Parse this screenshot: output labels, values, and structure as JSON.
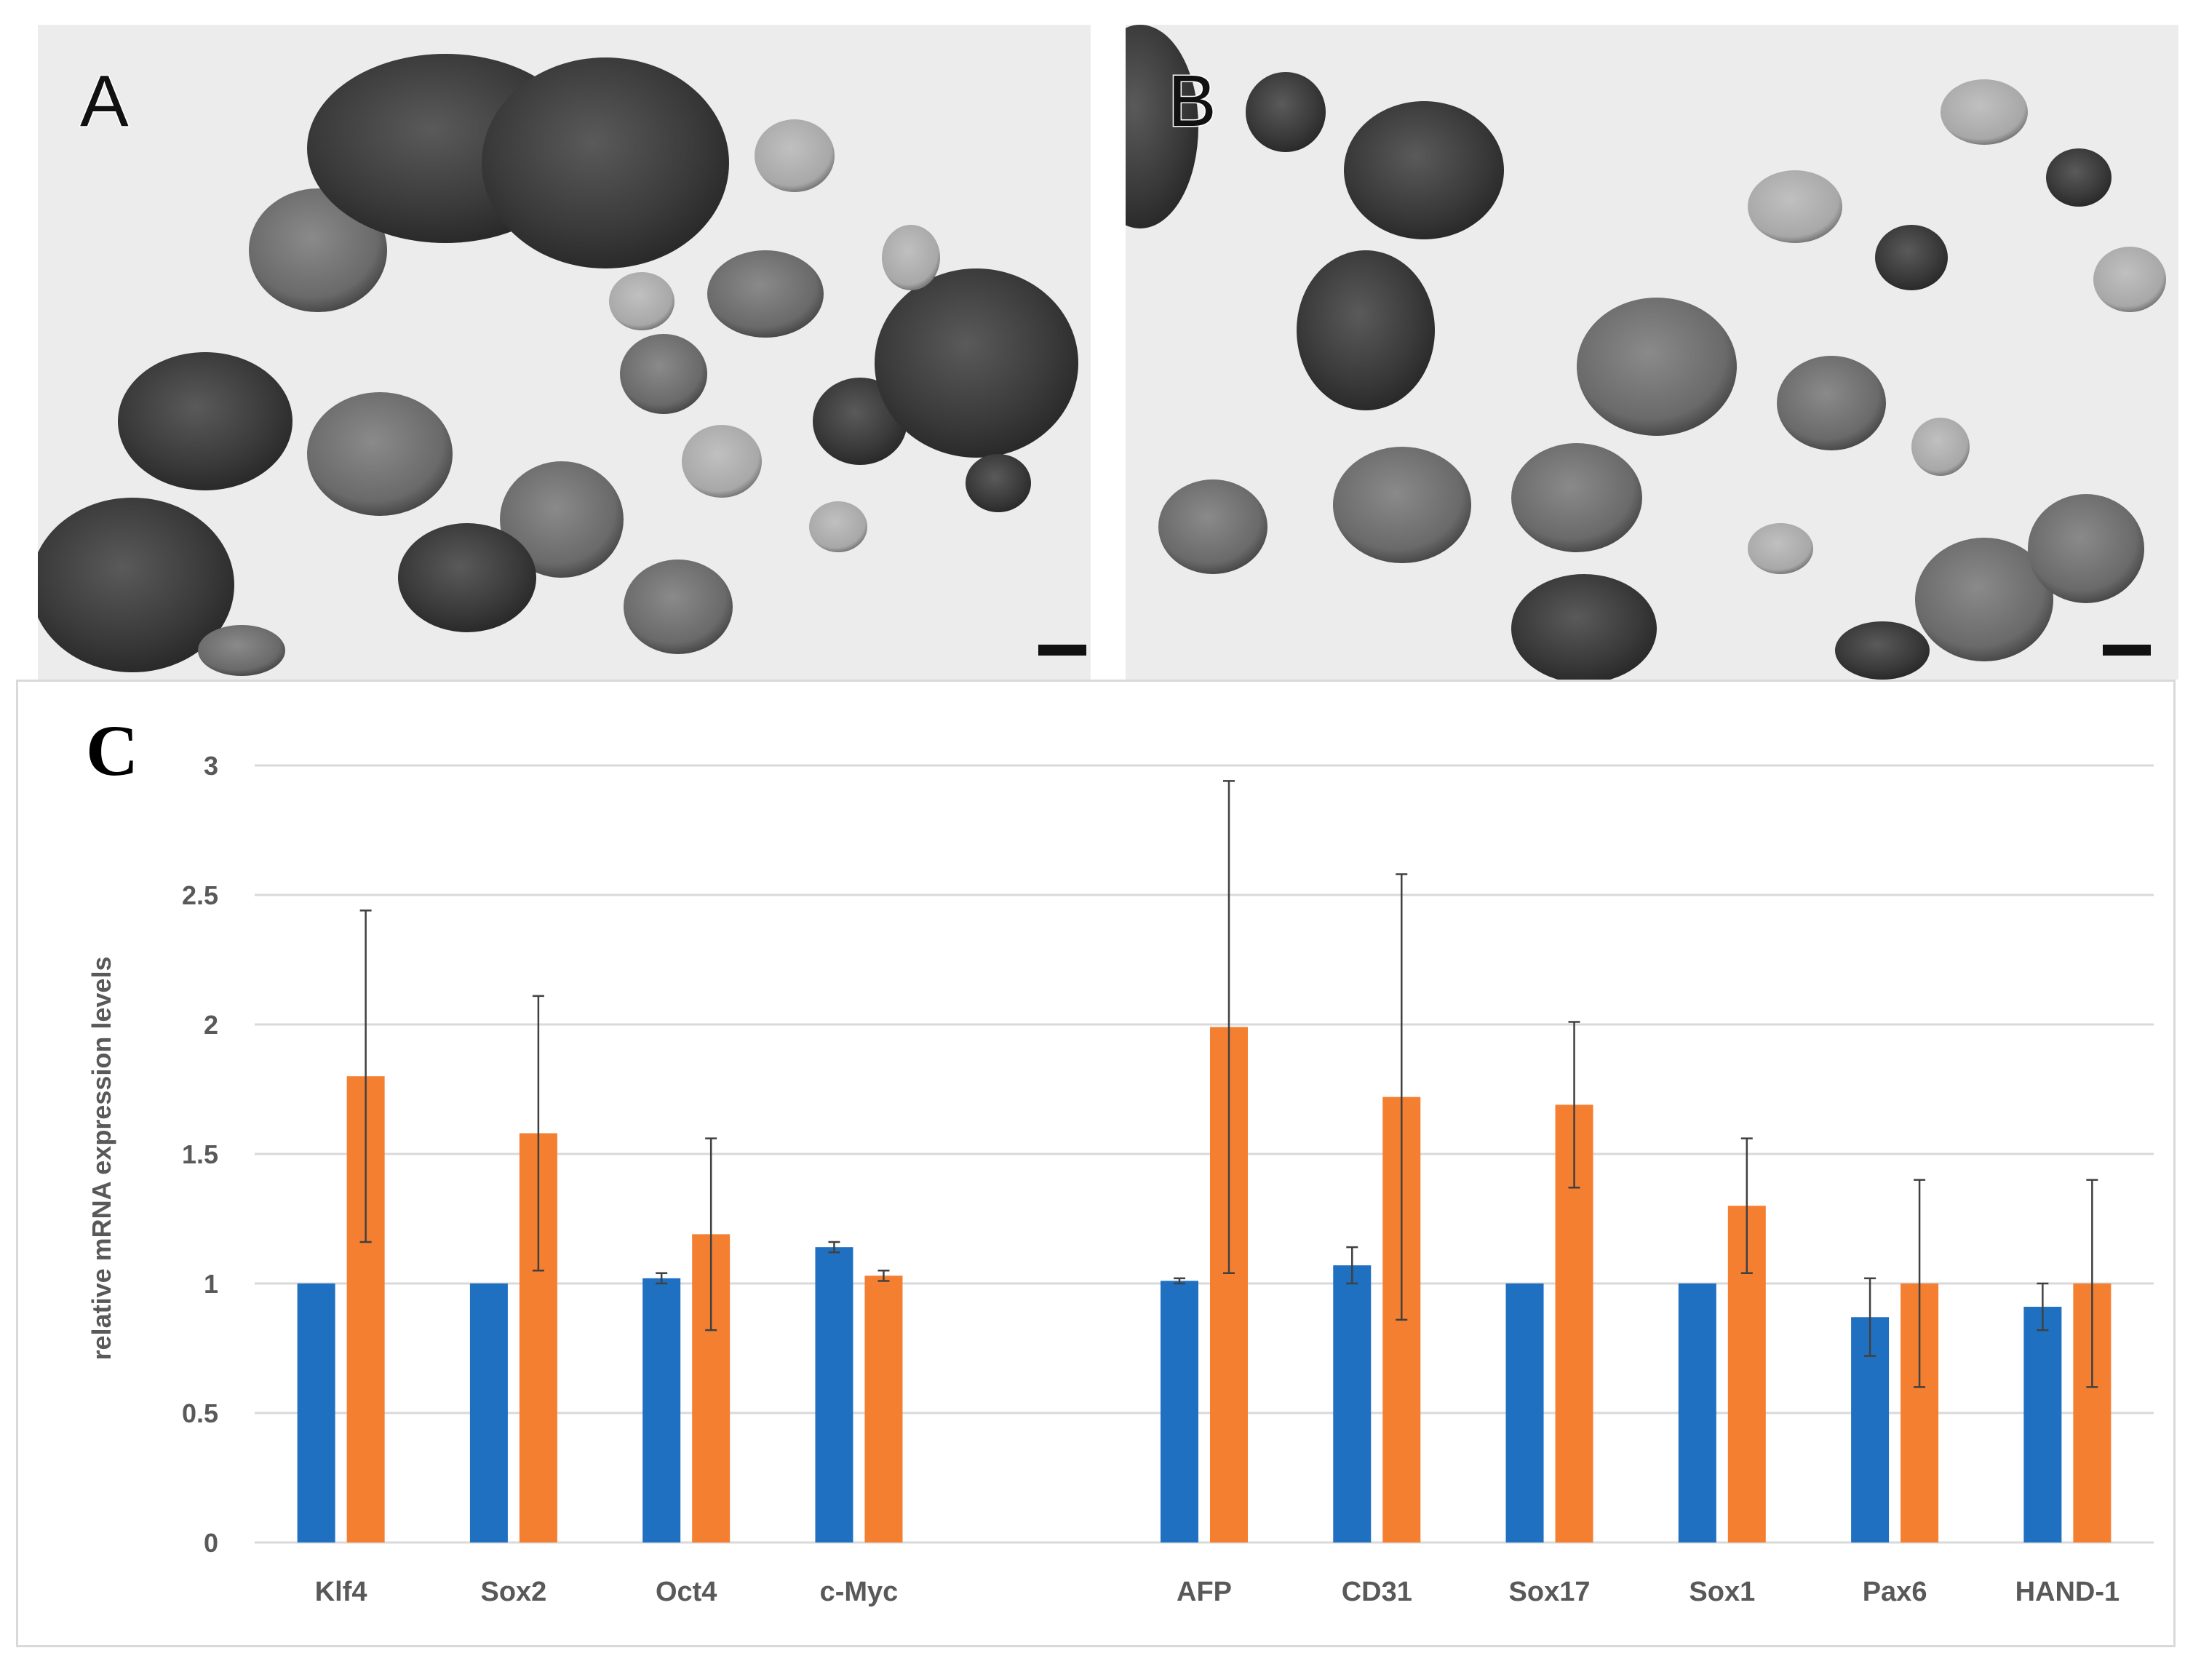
{
  "panels": {
    "a": {
      "letter": "A"
    },
    "b": {
      "letter": "B"
    },
    "c": {
      "letter": "C"
    }
  },
  "colors": {
    "series1": "#1f70c1",
    "series2": "#f57f31",
    "grid": "#d9d9d9",
    "error_bar": "#404040",
    "axis_text": "#595959"
  },
  "chart_data": {
    "type": "bar",
    "title": "",
    "xlabel": "",
    "ylabel": "relative mRNA expression levels",
    "ylim": [
      0,
      3
    ],
    "yticks": [
      "0",
      "0.5",
      "1",
      "1.5",
      "2",
      "2.5",
      "3"
    ],
    "grid": true,
    "legend": "none",
    "categories": [
      "Klf4",
      "Sox2",
      "Oct4",
      "c-Myc",
      "",
      "AFP",
      "CD31",
      "Sox17",
      "Sox1",
      "Pax6",
      "HAND-1"
    ],
    "series": [
      {
        "values": [
          1.0,
          1.0,
          1.02,
          1.14,
          null,
          1.01,
          1.07,
          1.0,
          1.0,
          0.87,
          0.91
        ],
        "error": [
          0.0,
          0.0,
          0.02,
          0.02,
          null,
          0.01,
          0.07,
          0.0,
          0.0,
          0.15,
          0.09
        ]
      },
      {
        "values": [
          1.8,
          1.58,
          1.19,
          1.03,
          null,
          1.99,
          1.72,
          1.69,
          1.3,
          1.0,
          1.0
        ],
        "error": [
          0.64,
          0.53,
          0.37,
          0.02,
          null,
          0.95,
          0.86,
          0.32,
          0.26,
          0.4,
          0.4
        ]
      }
    ]
  }
}
